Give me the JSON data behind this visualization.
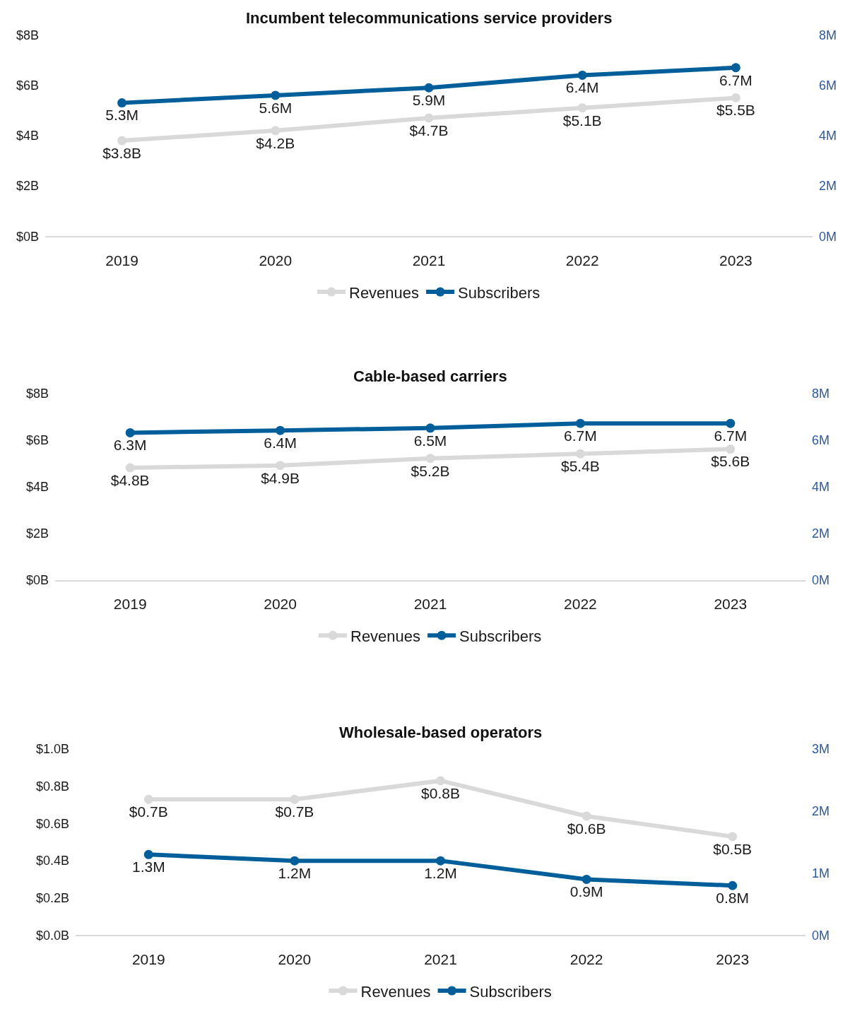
{
  "chart_data": [
    {
      "type": "line",
      "title": "Incumbent telecommunications service providers",
      "categories": [
        "2019",
        "2020",
        "2021",
        "2022",
        "2023"
      ],
      "series": [
        {
          "name": "Revenues",
          "color": "#d9d9d9",
          "values": [
            3.8,
            4.2,
            4.7,
            5.1,
            5.5
          ],
          "value_labels": [
            "$3.8B",
            "$4.2B",
            "$4.7B",
            "$5.1B",
            "$5.5B"
          ]
        },
        {
          "name": "Subscribers",
          "color": "#005f9b",
          "axis": "y2",
          "values": [
            5.3,
            5.6,
            5.9,
            6.4,
            6.7
          ],
          "value_labels": [
            "5.3M",
            "5.6M",
            "5.9M",
            "6.4M",
            "6.7M"
          ]
        }
      ],
      "ylim": [
        0,
        8
      ],
      "yticks": [
        {
          "value": 0,
          "label": "$0B"
        },
        {
          "value": 2,
          "label": "$2B"
        },
        {
          "value": 4,
          "label": "$4B"
        },
        {
          "value": 6,
          "label": "$6B"
        },
        {
          "value": 8,
          "label": "$8B"
        }
      ],
      "y2lim": [
        0,
        8
      ],
      "y2ticks": [
        {
          "value": 0,
          "label": "0M"
        },
        {
          "value": 2,
          "label": "2M"
        },
        {
          "value": 4,
          "label": "4M"
        },
        {
          "value": 6,
          "label": "6M"
        },
        {
          "value": 8,
          "label": "8M"
        }
      ],
      "legend": "bottom",
      "marker": "circle"
    },
    {
      "type": "line",
      "title": "Cable-based carriers",
      "categories": [
        "2019",
        "2020",
        "2021",
        "2022",
        "2023"
      ],
      "series": [
        {
          "name": "Revenues",
          "color": "#d9d9d9",
          "values": [
            4.8,
            4.9,
            5.2,
            5.4,
            5.6
          ],
          "value_labels": [
            "$4.8B",
            "$4.9B",
            "$5.2B",
            "$5.4B",
            "$5.6B"
          ]
        },
        {
          "name": "Subscribers",
          "color": "#005f9b",
          "axis": "y2",
          "values": [
            6.3,
            6.4,
            6.5,
            6.7,
            6.7
          ],
          "value_labels": [
            "6.3M",
            "6.4M",
            "6.5M",
            "6.7M",
            "6.7M"
          ]
        }
      ],
      "ylim": [
        0,
        8
      ],
      "yticks": [
        {
          "value": 0,
          "label": "$0B"
        },
        {
          "value": 2,
          "label": "$2B"
        },
        {
          "value": 4,
          "label": "$4B"
        },
        {
          "value": 6,
          "label": "$6B"
        },
        {
          "value": 8,
          "label": "$8B"
        }
      ],
      "y2lim": [
        0,
        8
      ],
      "y2ticks": [
        {
          "value": 0,
          "label": "0M"
        },
        {
          "value": 2,
          "label": "2M"
        },
        {
          "value": 4,
          "label": "4M"
        },
        {
          "value": 6,
          "label": "6M"
        },
        {
          "value": 8,
          "label": "8M"
        }
      ],
      "legend": "bottom",
      "marker": "circle"
    },
    {
      "type": "line",
      "title": "Wholesale-based operators",
      "categories": [
        "2019",
        "2020",
        "2021",
        "2022",
        "2023"
      ],
      "series": [
        {
          "name": "Revenues",
          "color": "#d9d9d9",
          "values": [
            0.73,
            0.73,
            0.83,
            0.64,
            0.53
          ],
          "value_labels": [
            "$0.7B",
            "$0.7B",
            "$0.8B",
            "$0.6B",
            "$0.5B"
          ]
        },
        {
          "name": "Subscribers",
          "color": "#005f9b",
          "axis": "y2",
          "values": [
            1.3,
            1.2,
            1.2,
            0.9,
            0.8
          ],
          "value_labels": [
            "1.3M",
            "1.2M",
            "1.2M",
            "0.9M",
            "0.8M"
          ]
        }
      ],
      "ylim": [
        0,
        1.0
      ],
      "yticks": [
        {
          "value": 0,
          "label": "$0.0B"
        },
        {
          "value": 0.2,
          "label": "$0.2B"
        },
        {
          "value": 0.4,
          "label": "$0.4B"
        },
        {
          "value": 0.6,
          "label": "$0.6B"
        },
        {
          "value": 0.8,
          "label": "$0.8B"
        },
        {
          "value": 1.0,
          "label": "$1.0B"
        }
      ],
      "y2lim": [
        0,
        3
      ],
      "y2ticks": [
        {
          "value": 0,
          "label": "0M"
        },
        {
          "value": 1,
          "label": "1M"
        },
        {
          "value": 2,
          "label": "2M"
        },
        {
          "value": 3,
          "label": "3M"
        }
      ],
      "legend": "bottom",
      "marker": "circle"
    }
  ]
}
